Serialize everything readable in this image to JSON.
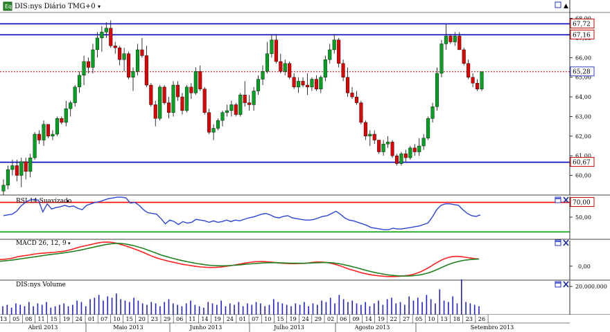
{
  "header": {
    "title": "DIS:nys Diário TMG+0",
    "title_arrow": "▾",
    "app_icon": "eq-icon"
  },
  "colors": {
    "up": "#00a020",
    "down": "#e00000",
    "support_resistance": "#0000c0",
    "rsi_line": "#2a45d6",
    "rsi_upper": "#ff0000",
    "rsi_lower": "#00a000",
    "macd_line": "#ff2020",
    "signal_line": "#208020",
    "volume": "#2020d0",
    "price_marker": "#c00000"
  },
  "chart_data": [
    {
      "type": "candlestick",
      "title": "DIS:nys Diário TMG+0",
      "ylim": [
        59.0,
        68.3
      ],
      "yticks": [
        "60,00",
        "61,00",
        "62,00",
        "63,00",
        "64,00",
        "65,00",
        "66,00",
        "67,00",
        "68,00"
      ],
      "horizontal_lines": [
        67.72,
        67.16,
        60.67
      ],
      "horizontal_line_labels": [
        "67,72",
        "67,16",
        "60,67"
      ],
      "current_price": 65.28,
      "current_price_label": "65,28",
      "candles": [
        [
          59.2,
          59.8,
          59.0,
          59.5
        ],
        [
          59.5,
          60.5,
          59.3,
          60.3
        ],
        [
          60.3,
          60.8,
          60.0,
          60.5
        ],
        [
          60.5,
          60.8,
          59.7,
          60.0
        ],
        [
          60.0,
          60.9,
          59.4,
          60.7
        ],
        [
          60.7,
          60.9,
          59.8,
          60.2
        ],
        [
          60.2,
          61.1,
          59.9,
          60.9
        ],
        [
          60.9,
          62.2,
          60.8,
          62.1
        ],
        [
          62.1,
          62.3,
          61.6,
          61.8
        ],
        [
          61.8,
          62.8,
          61.5,
          62.6
        ],
        [
          62.6,
          62.6,
          61.9,
          62.0
        ],
        [
          62.0,
          62.3,
          61.8,
          62.1
        ],
        [
          62.1,
          63.0,
          62.0,
          62.9
        ],
        [
          62.9,
          63.0,
          62.6,
          62.7
        ],
        [
          62.7,
          63.8,
          62.5,
          63.4
        ],
        [
          63.4,
          63.8,
          63.0,
          63.7
        ],
        [
          63.7,
          64.6,
          63.5,
          64.5
        ],
        [
          64.5,
          65.3,
          64.2,
          65.1
        ],
        [
          65.1,
          66.1,
          64.6,
          65.8
        ],
        [
          65.8,
          66.0,
          65.2,
          65.5
        ],
        [
          65.5,
          66.7,
          65.2,
          66.4
        ],
        [
          66.4,
          67.3,
          66.0,
          67.0
        ],
        [
          67.0,
          67.6,
          66.3,
          67.3
        ],
        [
          67.3,
          67.8,
          67.0,
          67.5
        ],
        [
          67.5,
          67.9,
          66.5,
          66.6
        ],
        [
          66.6,
          66.8,
          66.2,
          66.5
        ],
        [
          66.5,
          66.6,
          65.6,
          65.9
        ],
        [
          65.9,
          66.5,
          65.3,
          66.2
        ],
        [
          66.2,
          66.3,
          64.9,
          65.0
        ],
        [
          65.0,
          65.5,
          64.3,
          65.3
        ],
        [
          65.3,
          66.7,
          65.1,
          66.4
        ],
        [
          66.4,
          67.0,
          66.0,
          66.1
        ],
        [
          66.1,
          66.6,
          64.5,
          64.6
        ],
        [
          64.6,
          64.7,
          63.5,
          63.6
        ],
        [
          63.6,
          63.8,
          62.5,
          62.9
        ],
        [
          62.9,
          64.6,
          62.8,
          64.5
        ],
        [
          64.5,
          64.6,
          63.6,
          63.7
        ],
        [
          63.7,
          64.0,
          62.9,
          63.2
        ],
        [
          63.2,
          64.8,
          63.0,
          64.6
        ],
        [
          64.6,
          64.8,
          63.8,
          64.0
        ],
        [
          64.0,
          64.2,
          63.1,
          63.3
        ],
        [
          63.3,
          64.6,
          63.2,
          64.5
        ],
        [
          64.5,
          64.7,
          63.9,
          64.2
        ],
        [
          64.2,
          65.5,
          64.1,
          65.3
        ],
        [
          65.3,
          65.6,
          64.3,
          64.4
        ],
        [
          64.4,
          64.5,
          63.1,
          63.2
        ],
        [
          63.2,
          63.4,
          62.1,
          62.2
        ],
        [
          62.2,
          62.6,
          61.8,
          62.4
        ],
        [
          62.4,
          62.9,
          62.3,
          62.8
        ],
        [
          62.8,
          63.3,
          62.5,
          63.2
        ],
        [
          63.2,
          63.6,
          63.0,
          63.3
        ],
        [
          63.3,
          63.8,
          63.0,
          63.6
        ],
        [
          63.6,
          63.7,
          63.0,
          63.1
        ],
        [
          63.1,
          64.2,
          63.0,
          64.1
        ],
        [
          64.1,
          64.8,
          63.5,
          63.7
        ],
        [
          63.7,
          64.1,
          63.3,
          63.6
        ],
        [
          63.6,
          64.5,
          63.3,
          64.3
        ],
        [
          64.3,
          65.1,
          64.1,
          64.9
        ],
        [
          64.9,
          65.6,
          64.6,
          65.3
        ],
        [
          65.3,
          66.8,
          65.2,
          66.2
        ],
        [
          66.2,
          67.2,
          66.0,
          66.9
        ],
        [
          66.9,
          67.2,
          65.7,
          65.8
        ],
        [
          65.8,
          66.2,
          65.2,
          65.3
        ],
        [
          65.3,
          65.9,
          65.1,
          65.7
        ],
        [
          65.7,
          65.8,
          64.9,
          65.0
        ],
        [
          65.0,
          65.2,
          64.4,
          64.5
        ],
        [
          64.5,
          65.0,
          64.2,
          64.8
        ],
        [
          64.8,
          65.0,
          64.5,
          64.6
        ],
        [
          64.6,
          65.2,
          64.1,
          64.5
        ],
        [
          64.5,
          65.0,
          64.3,
          64.9
        ],
        [
          64.9,
          65.1,
          64.3,
          64.4
        ],
        [
          64.4,
          65.1,
          64.2,
          65.0
        ],
        [
          65.0,
          66.1,
          64.8,
          65.9
        ],
        [
          65.9,
          66.7,
          65.7,
          66.4
        ],
        [
          66.4,
          67.2,
          66.2,
          66.9
        ],
        [
          66.9,
          67.0,
          65.5,
          65.7
        ],
        [
          65.7,
          65.9,
          64.8,
          65.0
        ],
        [
          65.0,
          65.5,
          64.0,
          64.2
        ],
        [
          64.2,
          64.5,
          63.9,
          64.0
        ],
        [
          64.0,
          64.3,
          63.6,
          63.7
        ],
        [
          63.7,
          63.8,
          62.6,
          62.7
        ],
        [
          62.7,
          62.8,
          61.8,
          62.0
        ],
        [
          62.0,
          62.3,
          61.5,
          62.1
        ],
        [
          62.1,
          62.3,
          61.6,
          61.8
        ],
        [
          61.8,
          61.8,
          61.1,
          61.2
        ],
        [
          61.2,
          61.8,
          61.0,
          61.6
        ],
        [
          61.6,
          62.0,
          61.4,
          61.7
        ],
        [
          61.7,
          61.8,
          60.9,
          61.0
        ],
        [
          61.0,
          61.1,
          60.5,
          60.6
        ],
        [
          60.6,
          61.2,
          60.5,
          61.1
        ],
        [
          61.1,
          61.3,
          60.7,
          60.9
        ],
        [
          60.9,
          61.5,
          60.8,
          61.4
        ],
        [
          61.4,
          61.6,
          61.0,
          61.2
        ],
        [
          61.2,
          61.9,
          61.0,
          61.5
        ],
        [
          61.5,
          62.1,
          61.3,
          61.9
        ],
        [
          61.9,
          63.0,
          61.8,
          62.9
        ],
        [
          62.9,
          63.7,
          62.7,
          63.5
        ],
        [
          63.5,
          65.5,
          63.3,
          65.2
        ],
        [
          65.2,
          66.9,
          65.0,
          66.7
        ],
        [
          66.7,
          67.7,
          66.4,
          67.1
        ],
        [
          67.1,
          67.2,
          66.7,
          66.8
        ],
        [
          66.8,
          67.3,
          66.6,
          67.1
        ],
        [
          67.1,
          67.3,
          66.4,
          66.4
        ],
        [
          66.4,
          66.5,
          65.6,
          65.7
        ],
        [
          65.7,
          65.9,
          64.9,
          65.0
        ],
        [
          65.0,
          65.2,
          64.5,
          64.7
        ],
        [
          64.7,
          64.9,
          64.3,
          64.4
        ],
        [
          64.4,
          65.3,
          64.3,
          65.28
        ]
      ]
    },
    {
      "type": "line",
      "title": "RSI 14 Suavizado",
      "title_arrow": "▾",
      "ylim": [
        20,
        78
      ],
      "yticks": [
        "50,00"
      ],
      "upper_level": 70,
      "upper_level_label": "70,00",
      "lower_level": 30,
      "values": [
        52,
        53,
        54,
        58,
        65,
        70,
        73,
        74,
        73,
        57,
        68,
        61,
        63,
        64,
        66,
        64,
        65,
        62,
        60,
        66,
        68,
        70,
        71,
        73,
        75,
        76,
        77,
        77,
        76,
        69,
        70,
        66,
        60,
        56,
        55,
        54,
        48,
        41,
        46,
        44,
        40,
        44,
        42,
        43,
        47,
        46,
        45,
        43,
        45,
        43,
        44,
        46,
        44,
        46,
        45,
        47,
        49,
        50,
        52,
        54,
        55,
        53,
        50,
        49,
        51,
        52,
        49,
        48,
        47,
        46,
        46,
        47,
        49,
        51,
        52,
        55,
        58,
        54,
        49,
        46,
        45,
        43,
        41,
        39,
        36,
        35,
        34,
        33,
        33,
        35,
        34,
        34,
        35,
        36,
        37,
        38,
        40,
        42,
        50,
        60,
        66,
        68,
        68,
        67,
        66,
        60,
        55,
        52,
        51,
        53
      ]
    },
    {
      "type": "line",
      "title": "MACD 26, 12, 9",
      "title_arrow": "▾",
      "ylim": [
        -0.85,
        1.55
      ],
      "yticks": [
        "0,00"
      ],
      "series": [
        {
          "name": "MACD",
          "values": [
            0.4,
            0.42,
            0.45,
            0.5,
            0.58,
            0.62,
            0.66,
            0.7,
            0.75,
            0.78,
            0.8,
            0.82,
            0.84,
            0.87,
            0.9,
            0.95,
            1.02,
            1.1,
            1.18,
            1.24,
            1.3,
            1.36,
            1.42,
            1.46,
            1.47,
            1.45,
            1.4,
            1.32,
            1.24,
            1.15,
            1.05,
            0.95,
            0.84,
            0.72,
            0.6,
            0.5,
            0.42,
            0.35,
            0.28,
            0.22,
            0.16,
            0.1,
            0.06,
            0.02,
            -0.02,
            -0.05,
            -0.07,
            -0.08,
            -0.08,
            -0.06,
            -0.03,
            0.01,
            0.05,
            0.1,
            0.15,
            0.2,
            0.24,
            0.27,
            0.28,
            0.28,
            0.26,
            0.24,
            0.2,
            0.18,
            0.16,
            0.15,
            0.15,
            0.16,
            0.17,
            0.2,
            0.24,
            0.26,
            0.25,
            0.22,
            0.17,
            0.1,
            0.02,
            -0.08,
            -0.18,
            -0.26,
            -0.34,
            -0.42,
            -0.48,
            -0.53,
            -0.57,
            -0.6,
            -0.62,
            -0.63,
            -0.63,
            -0.62,
            -0.6,
            -0.57,
            -0.52,
            -0.44,
            -0.34,
            -0.2,
            -0.05,
            0.12,
            0.28,
            0.42,
            0.52,
            0.58,
            0.6,
            0.58,
            0.54,
            0.5,
            0.46,
            0.44
          ]
        },
        {
          "name": "Sinal",
          "values": [
            0.3,
            0.32,
            0.35,
            0.38,
            0.42,
            0.46,
            0.5,
            0.54,
            0.58,
            0.62,
            0.66,
            0.7,
            0.73,
            0.76,
            0.8,
            0.84,
            0.88,
            0.93,
            0.98,
            1.04,
            1.1,
            1.16,
            1.22,
            1.28,
            1.33,
            1.37,
            1.39,
            1.38,
            1.35,
            1.3,
            1.24,
            1.16,
            1.08,
            0.98,
            0.88,
            0.78,
            0.68,
            0.6,
            0.52,
            0.45,
            0.38,
            0.32,
            0.26,
            0.21,
            0.16,
            0.12,
            0.08,
            0.05,
            0.03,
            0.02,
            0.02,
            0.03,
            0.05,
            0.07,
            0.09,
            0.12,
            0.14,
            0.16,
            0.18,
            0.2,
            0.21,
            0.21,
            0.21,
            0.2,
            0.19,
            0.18,
            0.18,
            0.18,
            0.18,
            0.19,
            0.2,
            0.21,
            0.22,
            0.22,
            0.21,
            0.18,
            0.14,
            0.08,
            0.02,
            -0.05,
            -0.12,
            -0.2,
            -0.27,
            -0.34,
            -0.4,
            -0.45,
            -0.5,
            -0.54,
            -0.57,
            -0.59,
            -0.6,
            -0.6,
            -0.59,
            -0.56,
            -0.52,
            -0.46,
            -0.38,
            -0.28,
            -0.16,
            -0.04,
            0.08,
            0.18,
            0.26,
            0.32,
            0.37,
            0.4,
            0.42,
            0.43
          ]
        }
      ]
    },
    {
      "type": "bar",
      "title": "DIS:nys Volume",
      "ylim": [
        0,
        24000000
      ],
      "yticks": [
        "20.000.000"
      ],
      "values": [
        6,
        7,
        5,
        8,
        7,
        6,
        9,
        6,
        8,
        7,
        9,
        5,
        6,
        7,
        8,
        6,
        7,
        10,
        9,
        6,
        11,
        12,
        14,
        10,
        13,
        12,
        15,
        11,
        10,
        9,
        12,
        10,
        8,
        7,
        9,
        8,
        6,
        9,
        11,
        8,
        7,
        6,
        8,
        10,
        7,
        6,
        5,
        9,
        8,
        7,
        10,
        6,
        8,
        7,
        9,
        6,
        8,
        7,
        9,
        8,
        6,
        7,
        11,
        9,
        8,
        7,
        6,
        8,
        7,
        9,
        6,
        8,
        7,
        10,
        9,
        12,
        8,
        14,
        11,
        9,
        10,
        8,
        7,
        9,
        6,
        8,
        10,
        7,
        11,
        12,
        8,
        9,
        7,
        13,
        10,
        12,
        9,
        14,
        11,
        8,
        18,
        10,
        9,
        13,
        8,
        25,
        9,
        8,
        7,
        6
      ],
      "value_unit_millions": true
    }
  ],
  "x_axis": {
    "days": [
      "13",
      "05",
      "08",
      "11",
      "15",
      "19",
      "24",
      "01",
      "07",
      "10",
      "15",
      "20",
      "23",
      "29",
      "06",
      "11",
      "14",
      "19",
      "24",
      "01",
      "07",
      "10",
      "15",
      "19",
      "24",
      "29",
      "02",
      "06",
      "09",
      "14",
      "19",
      "22",
      "27",
      "05",
      "10",
      "13",
      "18",
      "23",
      "26"
    ],
    "months": [
      "Abril 2013",
      "Maio 2013",
      "Junho 2013",
      "Julho 2013",
      "Agosto 2013",
      "Setembro 2013"
    ]
  },
  "panel_controls": {
    "maximize": "maximize-icon",
    "close": "close-icon",
    "top_right": "up-arrow-icon"
  }
}
